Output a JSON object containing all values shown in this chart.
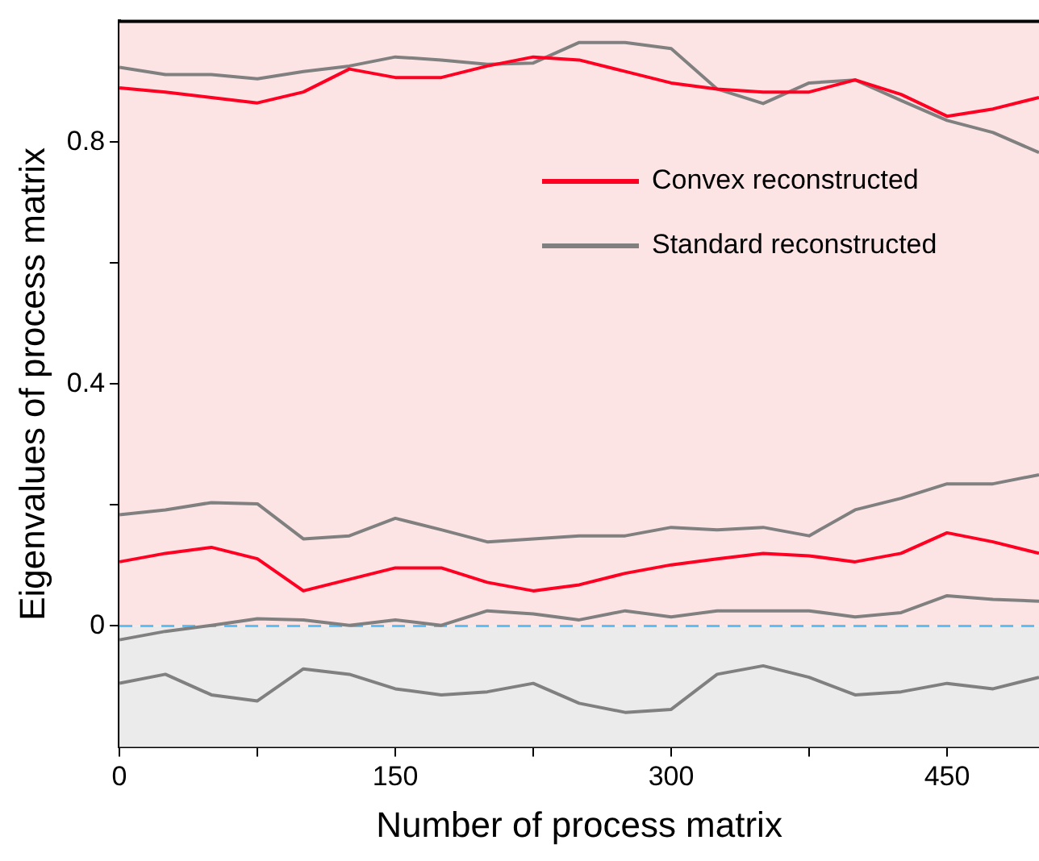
{
  "chart_data": {
    "type": "line",
    "xlabel": "Number of process matrix",
    "ylabel": "Eigenvalues of process matrix",
    "x": [
      0,
      25,
      50,
      75,
      100,
      125,
      150,
      175,
      200,
      225,
      250,
      275,
      300,
      325,
      350,
      375,
      400,
      425,
      450,
      475,
      500
    ],
    "series": [
      {
        "name": "Convex reconstructed",
        "color": "#ff0022",
        "values": [
          0.89,
          0.883,
          0.874,
          0.865,
          0.883,
          0.921,
          0.907,
          0.907,
          0.926,
          0.941,
          0.936,
          0.917,
          0.898,
          0.888,
          0.883,
          0.883,
          0.903,
          0.879,
          0.843,
          0.855,
          0.874
        ]
      },
      {
        "color": "#ff0022",
        "values": [
          0.106,
          0.12,
          0.13,
          0.111,
          0.058,
          0.077,
          0.096,
          0.096,
          0.072,
          0.058,
          0.068,
          0.087,
          0.101,
          0.111,
          0.12,
          0.116,
          0.106,
          0.12,
          0.154,
          0.139,
          0.12
        ]
      },
      {
        "name": "Standard reconstructed",
        "color": "#808080",
        "values": [
          0.924,
          0.912,
          0.912,
          0.905,
          0.917,
          0.926,
          0.941,
          0.936,
          0.929,
          0.931,
          0.965,
          0.965,
          0.955,
          0.888,
          0.864,
          0.898,
          0.903,
          0.869,
          0.836,
          0.816,
          0.783
        ]
      },
      {
        "color": "#808080",
        "values": [
          0.184,
          0.192,
          0.204,
          0.202,
          0.144,
          0.149,
          0.178,
          0.159,
          0.139,
          0.144,
          0.149,
          0.149,
          0.163,
          0.159,
          0.163,
          0.149,
          0.192,
          0.211,
          0.235,
          0.235,
          0.25
        ]
      },
      {
        "color": "#808080",
        "values": [
          -0.023,
          -0.009,
          0.001,
          0.012,
          0.01,
          0.001,
          0.01,
          0.001,
          0.025,
          0.02,
          0.01,
          0.025,
          0.015,
          0.025,
          0.025,
          0.025,
          0.015,
          0.022,
          0.05,
          0.044,
          0.041
        ]
      },
      {
        "color": "#808080",
        "values": [
          -0.095,
          -0.08,
          -0.114,
          -0.124,
          -0.071,
          -0.08,
          -0.104,
          -0.114,
          -0.109,
          -0.095,
          -0.128,
          -0.143,
          -0.138,
          -0.08,
          -0.066,
          -0.085,
          -0.114,
          -0.109,
          -0.095,
          -0.104,
          -0.085
        ]
      }
    ],
    "xlim": [
      0,
      500
    ],
    "xticks": [
      0,
      {
        "value": 75,
        "label": null
      },
      150,
      {
        "value": 225,
        "label": null
      },
      300,
      {
        "value": 375,
        "label": null
      },
      450
    ],
    "ylim": [
      -0.2,
      1.0
    ],
    "yticks": [
      0,
      {
        "value": 0.2,
        "label": null
      },
      0.4,
      {
        "value": 0.6,
        "label": null
      },
      0.8
    ],
    "bands": [
      {
        "axis": "y",
        "from": 0,
        "to": 1.0,
        "color": "#fde4e4"
      },
      {
        "axis": "y",
        "from": -0.2,
        "to": 0,
        "color": "#ebebeb"
      }
    ],
    "ref_lines": [
      {
        "axis": "y",
        "value": 0,
        "color": "#5bc0f8",
        "line_style": "dashed"
      }
    ],
    "grid": false,
    "legend": "top right",
    "marker": "none",
    "line_style": "solid"
  }
}
